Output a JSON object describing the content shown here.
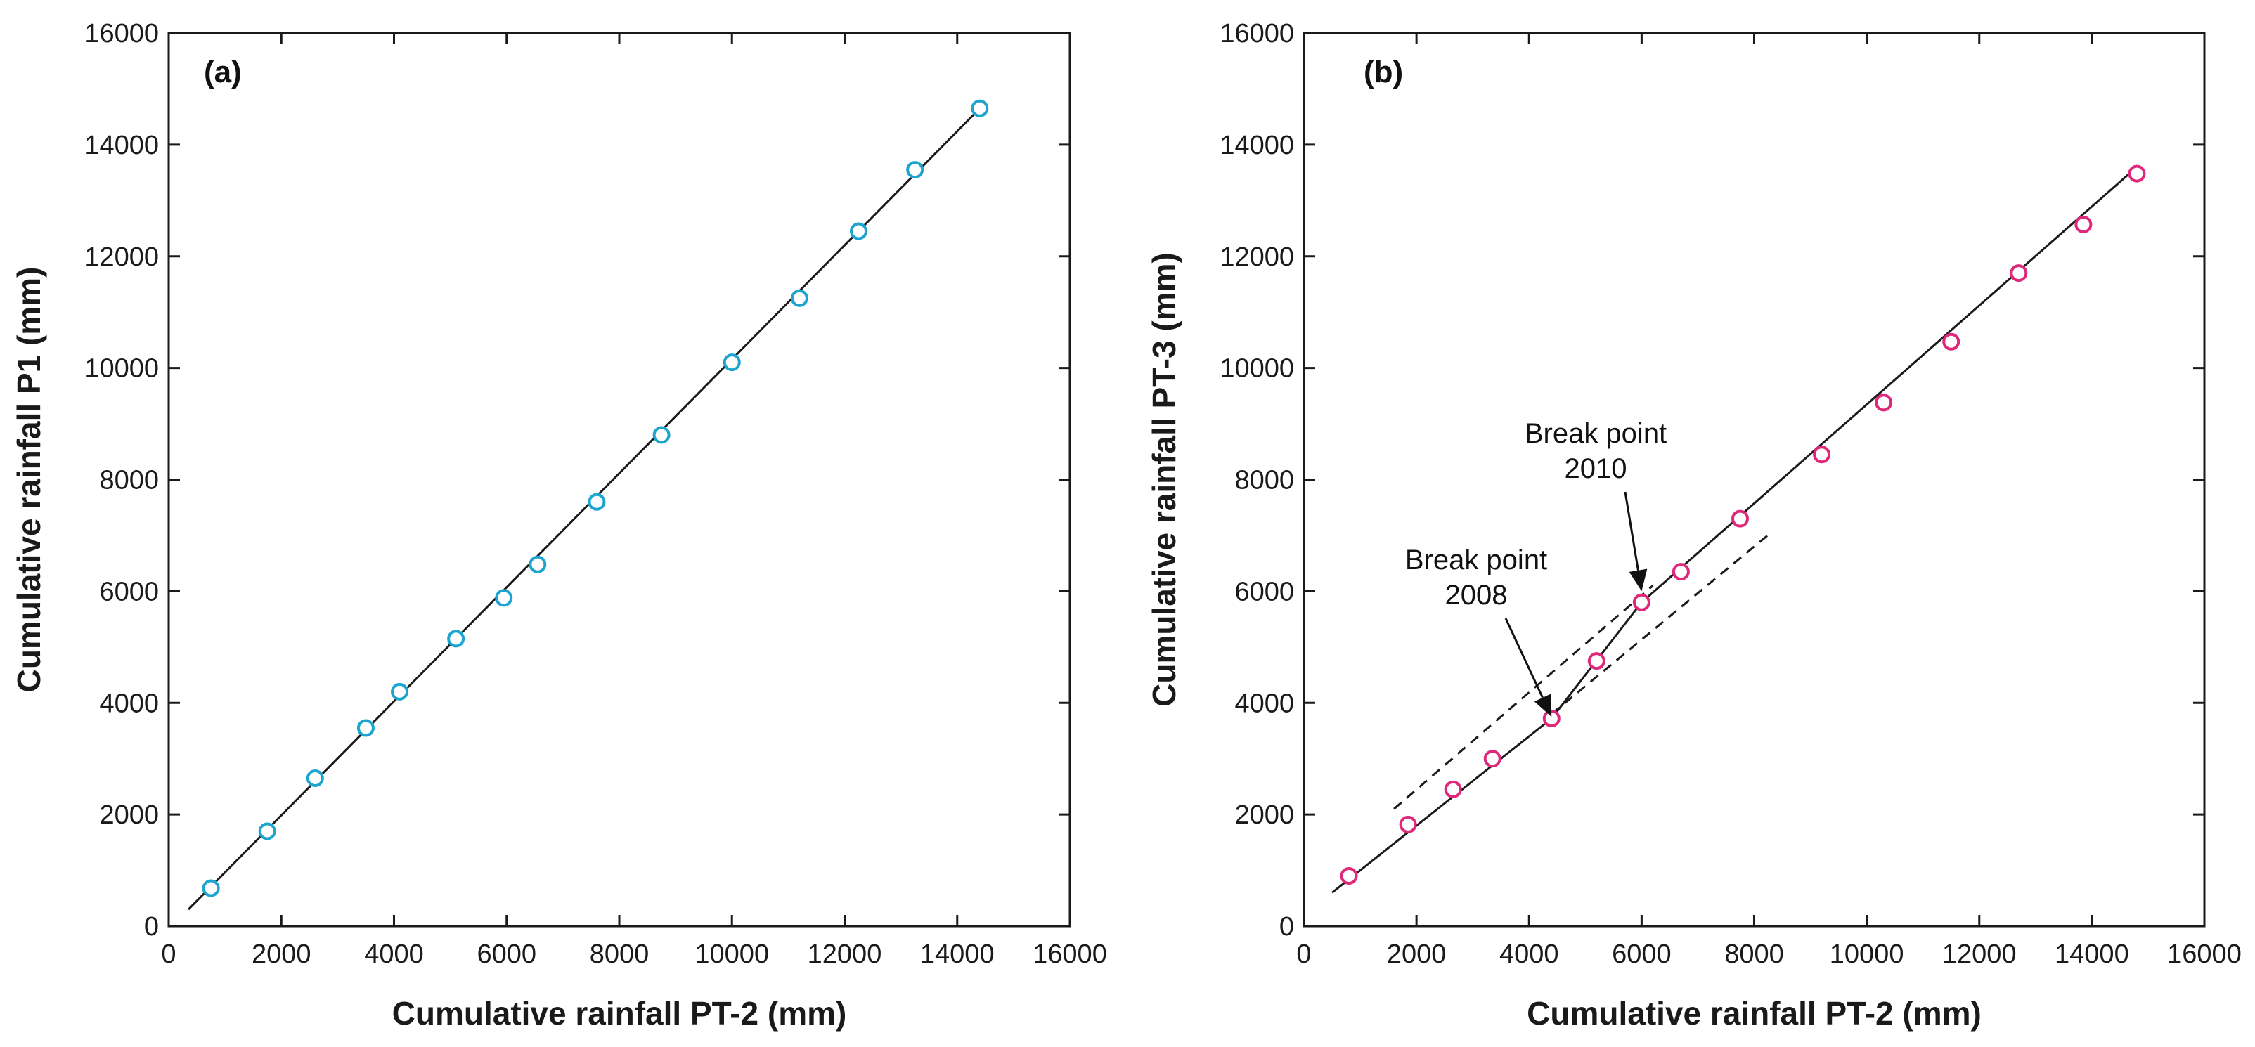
{
  "chart_data": [
    {
      "panel": "(a)",
      "type": "scatter",
      "xlabel": "Cumulative rainfall PT-2 (mm)",
      "ylabel": "Cumulative rainfall P1 (mm)",
      "xlim": [
        0,
        16000
      ],
      "ylim": [
        0,
        16000
      ],
      "xticks": [
        0,
        2000,
        4000,
        6000,
        8000,
        10000,
        12000,
        14000,
        16000
      ],
      "yticks": [
        0,
        2000,
        4000,
        6000,
        8000,
        10000,
        12000,
        14000,
        16000
      ],
      "marker_color": "#1ea5cf",
      "points": [
        {
          "x": 750,
          "y": 680
        },
        {
          "x": 1750,
          "y": 1700
        },
        {
          "x": 2600,
          "y": 2650
        },
        {
          "x": 3500,
          "y": 3550
        },
        {
          "x": 4100,
          "y": 4200
        },
        {
          "x": 5100,
          "y": 5150
        },
        {
          "x": 5950,
          "y": 5880
        },
        {
          "x": 6550,
          "y": 6480
        },
        {
          "x": 7600,
          "y": 7600
        },
        {
          "x": 8750,
          "y": 8800
        },
        {
          "x": 10000,
          "y": 10100
        },
        {
          "x": 11200,
          "y": 11250
        },
        {
          "x": 12250,
          "y": 12450
        },
        {
          "x": 13250,
          "y": 13550
        },
        {
          "x": 14400,
          "y": 14650
        }
      ],
      "fit_lines": [
        {
          "style": "solid",
          "points": [
            {
              "x": 350,
              "y": 300
            },
            {
              "x": 14450,
              "y": 14700
            }
          ]
        }
      ],
      "annotations": []
    },
    {
      "panel": "(b)",
      "type": "scatter",
      "xlabel": "Cumulative rainfall PT-2 (mm)",
      "ylabel": "Cumulative rainfall PT-3 (mm)",
      "xlim": [
        0,
        16000
      ],
      "ylim": [
        0,
        16000
      ],
      "xticks": [
        0,
        2000,
        4000,
        6000,
        8000,
        10000,
        12000,
        14000,
        16000
      ],
      "yticks": [
        0,
        2000,
        4000,
        6000,
        8000,
        10000,
        12000,
        14000,
        16000
      ],
      "marker_color": "#e0287a",
      "points": [
        {
          "x": 800,
          "y": 900
        },
        {
          "x": 1850,
          "y": 1820
        },
        {
          "x": 2650,
          "y": 2450
        },
        {
          "x": 3350,
          "y": 3000
        },
        {
          "x": 4400,
          "y": 3720
        },
        {
          "x": 5200,
          "y": 4750
        },
        {
          "x": 6000,
          "y": 5800
        },
        {
          "x": 6700,
          "y": 6350
        },
        {
          "x": 7750,
          "y": 7300
        },
        {
          "x": 9200,
          "y": 8450
        },
        {
          "x": 10300,
          "y": 9380
        },
        {
          "x": 11500,
          "y": 10470
        },
        {
          "x": 12700,
          "y": 11700
        },
        {
          "x": 13850,
          "y": 12570
        },
        {
          "x": 14800,
          "y": 13480
        }
      ],
      "fit_lines": [
        {
          "style": "solid",
          "points": [
            {
              "x": 500,
              "y": 600
            },
            {
              "x": 4400,
              "y": 3720
            }
          ]
        },
        {
          "style": "solid",
          "points": [
            {
              "x": 4400,
              "y": 3720
            },
            {
              "x": 6000,
              "y": 5800
            }
          ]
        },
        {
          "style": "solid",
          "points": [
            {
              "x": 6000,
              "y": 5800
            },
            {
              "x": 14800,
              "y": 13600
            }
          ]
        },
        {
          "style": "dashed",
          "points": [
            {
              "x": 1600,
              "y": 2100
            },
            {
              "x": 6200,
              "y": 6100
            }
          ]
        },
        {
          "style": "dashed",
          "points": [
            {
              "x": 4400,
              "y": 3800
            },
            {
              "x": 8300,
              "y": 7050
            }
          ]
        }
      ],
      "annotations": [
        {
          "lines": [
            "Break point",
            "2008"
          ],
          "arrow_to": {
            "x": 4400,
            "y": 3750
          }
        },
        {
          "lines": [
            "Break point",
            "2010"
          ],
          "arrow_to": {
            "x": 6000,
            "y": 6000
          }
        }
      ]
    }
  ]
}
